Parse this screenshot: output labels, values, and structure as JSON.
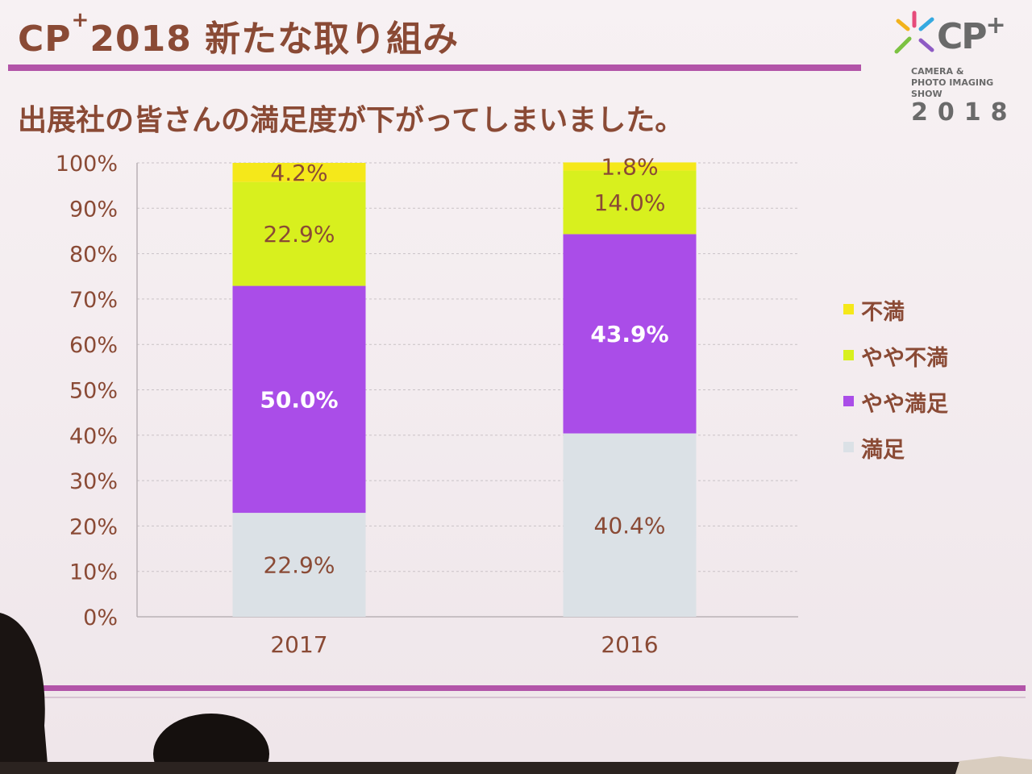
{
  "slide": {
    "title_prefix": "CP",
    "title_plus": "+",
    "title_rest": "2018 新たな取り組み",
    "subtitle": "出展社の皆さんの満足度が下がってしまいました。"
  },
  "logo": {
    "name": "CP",
    "plus": "+",
    "tagline": "CAMERA &\nPHOTO IMAGING\nSHOW",
    "year": "2018"
  },
  "colors": {
    "accent": "#b254a8",
    "text": "#8a4a35",
    "fumani": "#f5e81a",
    "yaya_fuman": "#d8f01e",
    "yaya_manzoku": "#aa4de8",
    "manzoku": "#dbe1e6"
  },
  "chart_data": {
    "type": "bar",
    "stacked": true,
    "categories": [
      "2017",
      "2016"
    ],
    "series": [
      {
        "name": "満足",
        "color": "#dbe1e6",
        "values": [
          22.9,
          40.4
        ],
        "labels": [
          "22.9%",
          "40.4%"
        ],
        "label_color": "#8a4a35"
      },
      {
        "name": "やや満足",
        "color": "#aa4de8",
        "values": [
          50.0,
          43.9
        ],
        "labels": [
          "50.0%",
          "43.9%"
        ],
        "label_color": "#ffffff"
      },
      {
        "name": "やや不満",
        "color": "#d8f01e",
        "values": [
          22.9,
          14.0
        ],
        "labels": [
          "22.9%",
          "14.0%"
        ],
        "label_color": "#8a4a35"
      },
      {
        "name": "不満",
        "color": "#f5e81a",
        "values": [
          4.2,
          1.8
        ],
        "labels": [
          "4.2%",
          "1.8%"
        ],
        "label_color": "#8a4a35"
      }
    ],
    "y_ticks": [
      "0%",
      "10%",
      "20%",
      "30%",
      "40%",
      "50%",
      "60%",
      "70%",
      "80%",
      "90%",
      "100%"
    ],
    "ylim": [
      0,
      100
    ],
    "grid": true,
    "legend_position": "right"
  }
}
